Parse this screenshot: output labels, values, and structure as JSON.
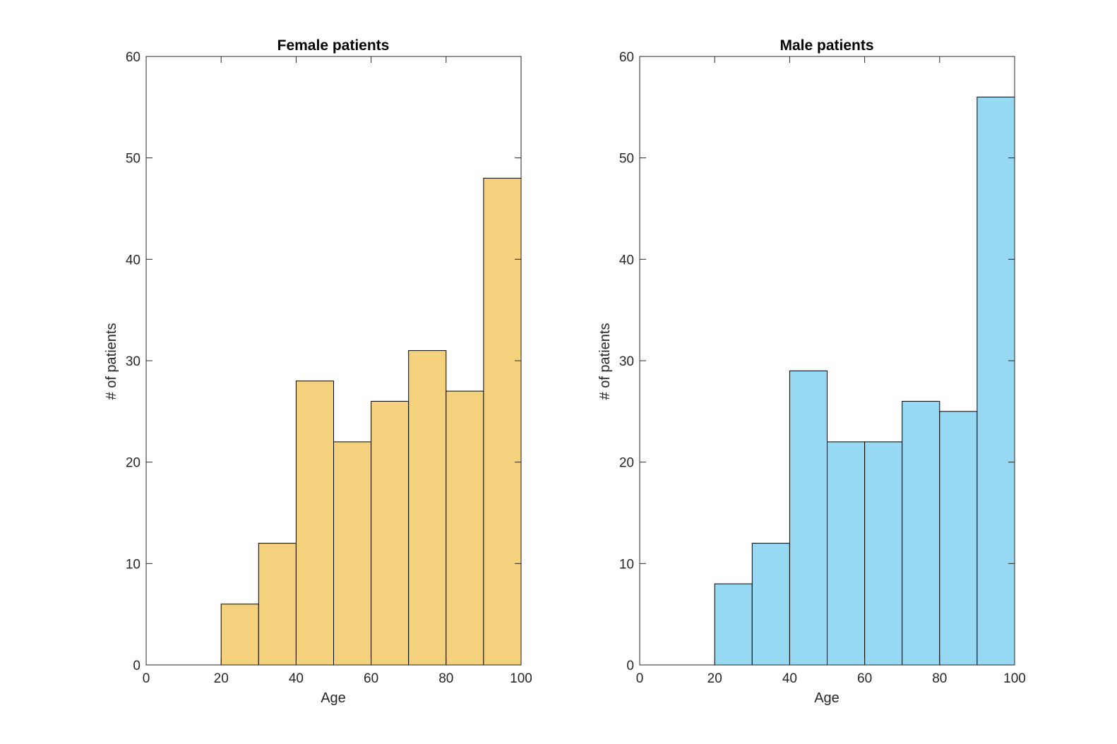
{
  "chart_data": [
    {
      "type": "bar",
      "title": "Female patients",
      "xlabel": "Age",
      "ylabel": "# of patients",
      "bin_edges": [
        20,
        30,
        40,
        50,
        60,
        70,
        80,
        90,
        100
      ],
      "values": [
        6,
        12,
        28,
        22,
        26,
        31,
        27,
        48
      ],
      "xlim": [
        0,
        100
      ],
      "ylim": [
        0,
        60
      ],
      "xticks": [
        "0",
        "20",
        "40",
        "60",
        "80",
        "100"
      ],
      "yticks": [
        "0",
        "10",
        "20",
        "30",
        "40",
        "50",
        "60"
      ],
      "color": "#f3d17d",
      "grid": false
    },
    {
      "type": "bar",
      "title": "Male patients",
      "xlabel": "Age",
      "ylabel": "# of patients",
      "bin_edges": [
        20,
        30,
        40,
        50,
        60,
        70,
        80,
        90,
        100
      ],
      "values": [
        8,
        12,
        29,
        22,
        22,
        26,
        25,
        56
      ],
      "xlim": [
        0,
        100
      ],
      "ylim": [
        0,
        60
      ],
      "xticks": [
        "0",
        "20",
        "40",
        "60",
        "80",
        "100"
      ],
      "yticks": [
        "0",
        "10",
        "20",
        "30",
        "40",
        "50",
        "60"
      ],
      "color": "#97d8f3",
      "grid": false
    }
  ]
}
